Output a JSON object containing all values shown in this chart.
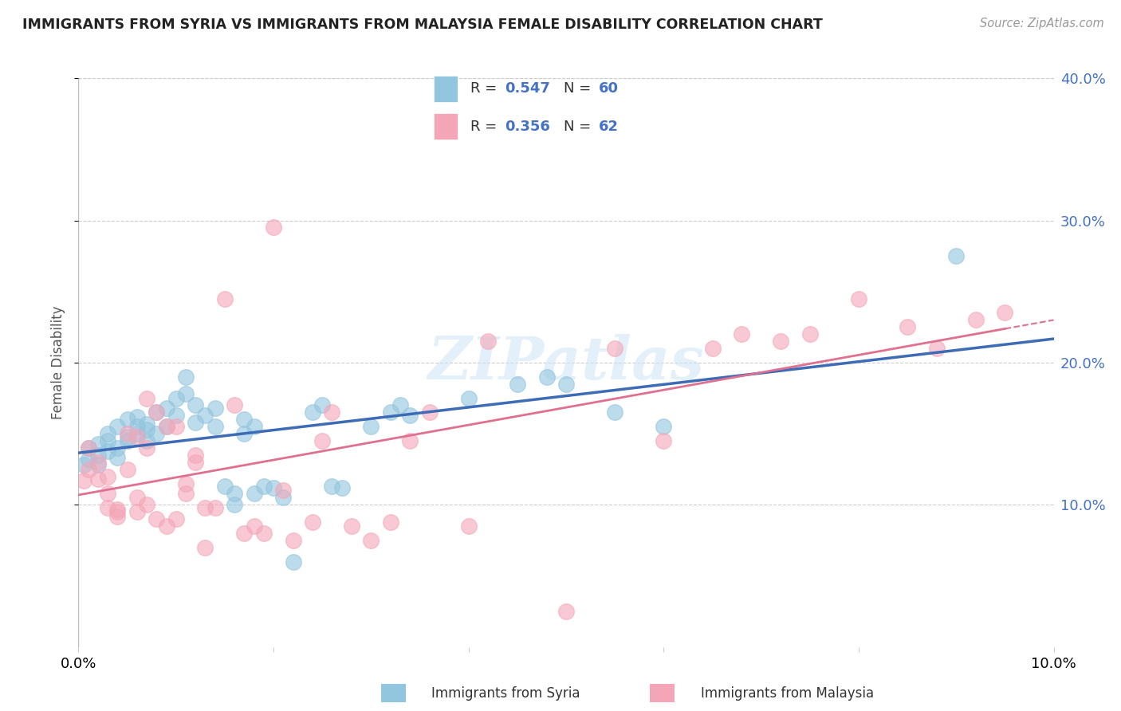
{
  "title": "IMMIGRANTS FROM SYRIA VS IMMIGRANTS FROM MALAYSIA FEMALE DISABILITY CORRELATION CHART",
  "source": "Source: ZipAtlas.com",
  "ylabel": "Female Disability",
  "xlim": [
    0.0,
    0.1
  ],
  "ylim": [
    0.0,
    0.4
  ],
  "yticks": [
    0.1,
    0.2,
    0.3,
    0.4
  ],
  "ytick_labels": [
    "10.0%",
    "20.0%",
    "30.0%",
    "40.0%"
  ],
  "xticks": [
    0.0,
    0.02,
    0.04,
    0.06,
    0.08,
    0.1
  ],
  "xtick_left_label": "0.0%",
  "xtick_right_label": "10.0%",
  "legend1_label": "Immigrants from Syria",
  "legend2_label": "Immigrants from Malaysia",
  "R_syria": 0.547,
  "N_syria": 60,
  "R_malaysia": 0.356,
  "N_malaysia": 62,
  "color_syria": "#92c5de",
  "color_malaysia": "#f4a6b8",
  "line_color_syria": "#3d6bb5",
  "line_color_malaysia": "#e07090",
  "watermark": "ZIPatlas",
  "syria_points": [
    [
      0.0005,
      0.128
    ],
    [
      0.001,
      0.132
    ],
    [
      0.001,
      0.14
    ],
    [
      0.002,
      0.135
    ],
    [
      0.002,
      0.143
    ],
    [
      0.002,
      0.128
    ],
    [
      0.003,
      0.15
    ],
    [
      0.003,
      0.138
    ],
    [
      0.003,
      0.145
    ],
    [
      0.004,
      0.133
    ],
    [
      0.004,
      0.155
    ],
    [
      0.004,
      0.14
    ],
    [
      0.005,
      0.148
    ],
    [
      0.005,
      0.16
    ],
    [
      0.005,
      0.145
    ],
    [
      0.006,
      0.155
    ],
    [
      0.006,
      0.15
    ],
    [
      0.006,
      0.162
    ],
    [
      0.007,
      0.153
    ],
    [
      0.007,
      0.157
    ],
    [
      0.007,
      0.145
    ],
    [
      0.008,
      0.165
    ],
    [
      0.008,
      0.15
    ],
    [
      0.009,
      0.168
    ],
    [
      0.009,
      0.155
    ],
    [
      0.01,
      0.175
    ],
    [
      0.01,
      0.163
    ],
    [
      0.011,
      0.19
    ],
    [
      0.011,
      0.178
    ],
    [
      0.012,
      0.158
    ],
    [
      0.012,
      0.17
    ],
    [
      0.013,
      0.163
    ],
    [
      0.014,
      0.155
    ],
    [
      0.014,
      0.168
    ],
    [
      0.015,
      0.113
    ],
    [
      0.016,
      0.1
    ],
    [
      0.016,
      0.108
    ],
    [
      0.017,
      0.15
    ],
    [
      0.017,
      0.16
    ],
    [
      0.018,
      0.155
    ],
    [
      0.018,
      0.108
    ],
    [
      0.019,
      0.113
    ],
    [
      0.02,
      0.112
    ],
    [
      0.021,
      0.105
    ],
    [
      0.022,
      0.06
    ],
    [
      0.024,
      0.165
    ],
    [
      0.025,
      0.17
    ],
    [
      0.026,
      0.113
    ],
    [
      0.027,
      0.112
    ],
    [
      0.03,
      0.155
    ],
    [
      0.032,
      0.165
    ],
    [
      0.033,
      0.17
    ],
    [
      0.034,
      0.163
    ],
    [
      0.04,
      0.175
    ],
    [
      0.045,
      0.185
    ],
    [
      0.048,
      0.19
    ],
    [
      0.05,
      0.185
    ],
    [
      0.055,
      0.165
    ],
    [
      0.06,
      0.155
    ],
    [
      0.09,
      0.275
    ]
  ],
  "malaysia_points": [
    [
      0.0005,
      0.117
    ],
    [
      0.001,
      0.125
    ],
    [
      0.001,
      0.14
    ],
    [
      0.002,
      0.118
    ],
    [
      0.002,
      0.13
    ],
    [
      0.003,
      0.108
    ],
    [
      0.003,
      0.12
    ],
    [
      0.003,
      0.098
    ],
    [
      0.004,
      0.092
    ],
    [
      0.004,
      0.095
    ],
    [
      0.004,
      0.097
    ],
    [
      0.005,
      0.15
    ],
    [
      0.005,
      0.125
    ],
    [
      0.006,
      0.148
    ],
    [
      0.006,
      0.105
    ],
    [
      0.006,
      0.095
    ],
    [
      0.007,
      0.175
    ],
    [
      0.007,
      0.14
    ],
    [
      0.007,
      0.1
    ],
    [
      0.008,
      0.09
    ],
    [
      0.008,
      0.165
    ],
    [
      0.009,
      0.155
    ],
    [
      0.009,
      0.085
    ],
    [
      0.01,
      0.09
    ],
    [
      0.01,
      0.155
    ],
    [
      0.011,
      0.108
    ],
    [
      0.011,
      0.115
    ],
    [
      0.012,
      0.13
    ],
    [
      0.012,
      0.135
    ],
    [
      0.013,
      0.098
    ],
    [
      0.013,
      0.07
    ],
    [
      0.014,
      0.098
    ],
    [
      0.015,
      0.245
    ],
    [
      0.016,
      0.17
    ],
    [
      0.017,
      0.08
    ],
    [
      0.018,
      0.085
    ],
    [
      0.019,
      0.08
    ],
    [
      0.02,
      0.295
    ],
    [
      0.021,
      0.11
    ],
    [
      0.022,
      0.075
    ],
    [
      0.024,
      0.088
    ],
    [
      0.025,
      0.145
    ],
    [
      0.026,
      0.165
    ],
    [
      0.028,
      0.085
    ],
    [
      0.03,
      0.075
    ],
    [
      0.032,
      0.088
    ],
    [
      0.034,
      0.145
    ],
    [
      0.036,
      0.165
    ],
    [
      0.04,
      0.085
    ],
    [
      0.042,
      0.215
    ],
    [
      0.05,
      0.025
    ],
    [
      0.055,
      0.21
    ],
    [
      0.06,
      0.145
    ],
    [
      0.065,
      0.21
    ],
    [
      0.068,
      0.22
    ],
    [
      0.072,
      0.215
    ],
    [
      0.075,
      0.22
    ],
    [
      0.08,
      0.245
    ],
    [
      0.085,
      0.225
    ],
    [
      0.088,
      0.21
    ],
    [
      0.092,
      0.23
    ],
    [
      0.095,
      0.235
    ]
  ]
}
